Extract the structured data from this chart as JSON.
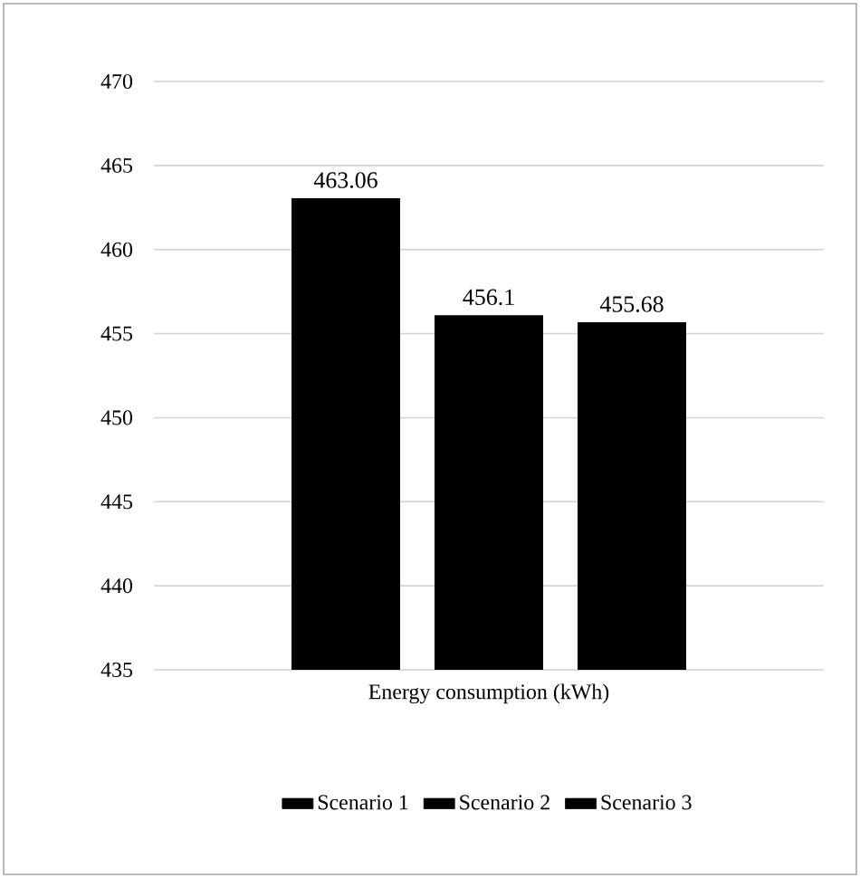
{
  "chart_data": {
    "type": "bar",
    "categories": [
      "Energy consumption (kWh)"
    ],
    "series": [
      {
        "name": "Scenario 1",
        "color": "#000000",
        "values": [
          463.06
        ],
        "value_labels": [
          "463.06"
        ]
      },
      {
        "name": "Scenario 2",
        "color": "#000000",
        "values": [
          456.1
        ],
        "value_labels": [
          "456.1"
        ]
      },
      {
        "name": "Scenario 3",
        "color": "#000000",
        "values": [
          455.68
        ],
        "value_labels": [
          "455.68"
        ]
      }
    ],
    "ylim": [
      435,
      470
    ],
    "yticks": [
      435,
      440,
      445,
      450,
      455,
      460,
      465,
      470
    ],
    "grid": "y",
    "legend": "bottom",
    "data_labels": true
  }
}
